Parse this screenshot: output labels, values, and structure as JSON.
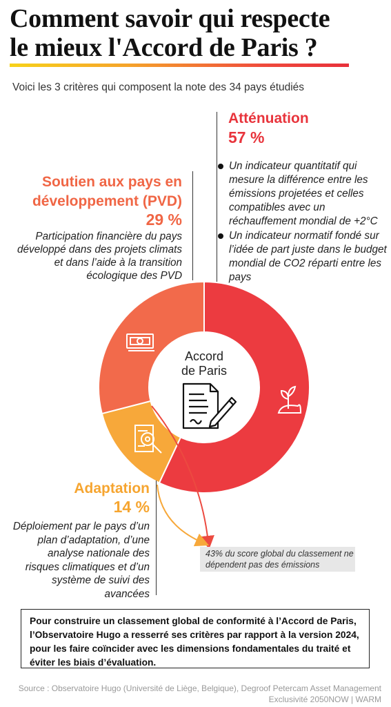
{
  "header": {
    "title_line1": "Comment savoir qui respecte",
    "title_line2": "le mieux l'Accord de Paris ?",
    "subtitle": "Voici les 3 critères qui composent la note des 34 pays étudiés"
  },
  "attenuation": {
    "title": "Atténuation",
    "pct": "57 %",
    "bullets": [
      "Un indicateur quantitatif qui mesure la différence entre les émissions projetées et celles compatibles avec un réchauffement mondial de +2°C",
      "Un indicateur normatif fondé sur l’idée de part juste dans le budget mondial de CO2 réparti entre les pays"
    ]
  },
  "pvd": {
    "title_line1": "Soutien aux pays en",
    "title_line2": "développement (PVD)",
    "pct": "29 %",
    "desc": "Participation financière du pays développé dans des projets climats et dans l’aide à la transition écologique des PVD"
  },
  "adaptation": {
    "title": "Adaptation",
    "pct": "14 %",
    "desc": "Déploiement par le pays d’un plan d’adaptation, d’une analyse nationale des risques climatiques et d’un système de suivi des avancées"
  },
  "center": {
    "line1": "Accord",
    "line2": "de Paris"
  },
  "callout": "43% du score global du classement ne dépendent pas des émissions",
  "box_text": "Pour construire un classement global de conformité à l’Accord de Paris, l’Observatoire Hugo a resserré ses critères par rapport à la version 2024, pour les faire coïncider avec les dimensions fondamentales du traité et éviter les biais d’évaluation.",
  "source_line1": "Source : Observatoire Hugo (Université de Liège, Belgique), Degroof Petercam Asset Management",
  "source_line2": "Exclusivité 2050NOW | WARM",
  "colors": {
    "attenuation": "#ec3b40",
    "pvd": "#f26a4b",
    "adaptation": "#f7a83a"
  },
  "chart_data": {
    "type": "pie",
    "title": "",
    "slices": [
      {
        "name": "Atténuation",
        "value": 57,
        "color": "#ec3b40"
      },
      {
        "name": "Adaptation",
        "value": 14,
        "color": "#f7a83a"
      },
      {
        "name": "Soutien aux pays en développement (PVD)",
        "value": 29,
        "color": "#f26a4b"
      }
    ],
    "donut": true
  }
}
